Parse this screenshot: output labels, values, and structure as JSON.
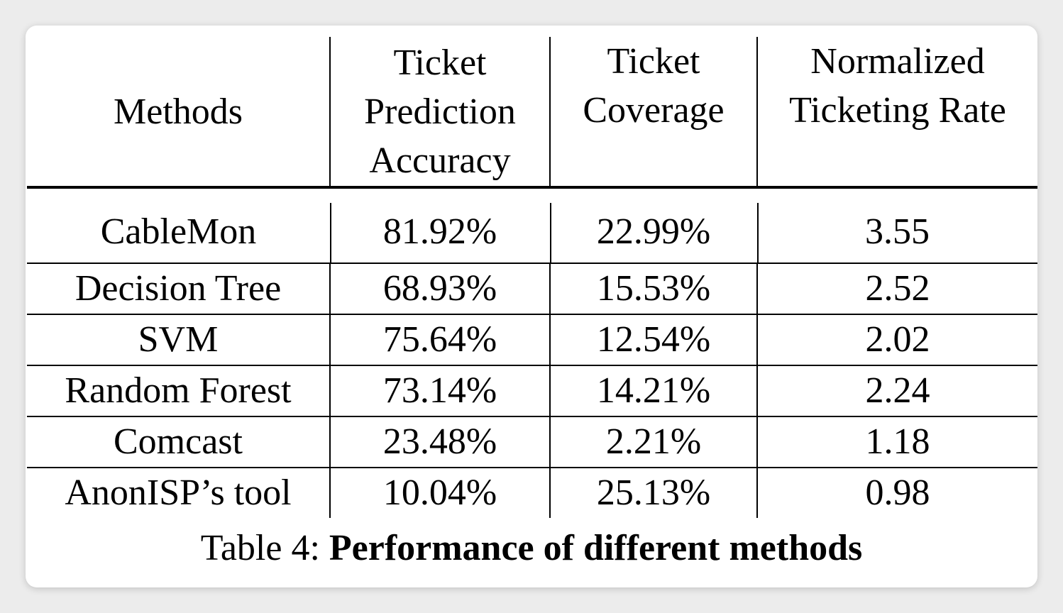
{
  "table": {
    "headers": [
      [
        "Methods"
      ],
      [
        "Ticket",
        "Prediction",
        "Accuracy"
      ],
      [
        "Ticket",
        "Coverage"
      ],
      [
        "Normalized",
        "Ticketing Rate"
      ]
    ],
    "rows": [
      [
        "CableMon",
        "81.92%",
        "22.99%",
        "3.55"
      ],
      [
        "Decision Tree",
        "68.93%",
        "15.53%",
        "2.52"
      ],
      [
        "SVM",
        "75.64%",
        "12.54%",
        "2.02"
      ],
      [
        "Random Forest",
        "73.14%",
        "14.21%",
        "2.24"
      ],
      [
        "Comcast",
        "23.48%",
        "2.21%",
        "1.18"
      ],
      [
        "AnonISP’s tool",
        "10.04%",
        "25.13%",
        "0.98"
      ]
    ]
  },
  "caption": {
    "prefix": "Table 4: ",
    "title": "Performance of different methods"
  }
}
